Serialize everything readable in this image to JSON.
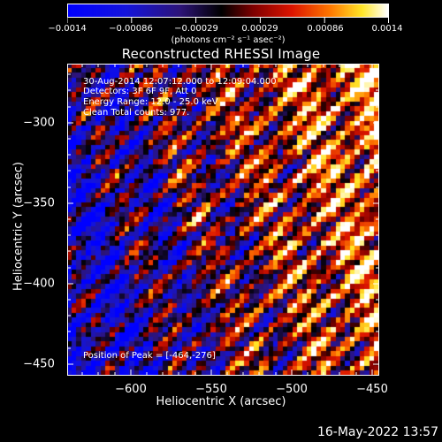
{
  "plot": {
    "title": "Reconstructed RHESSI Image",
    "x_label": "Heliocentric X (arcsec)",
    "y_label": "Heliocentric Y (arcsec)",
    "x_ticks": [
      "−600",
      "−550",
      "−500",
      "−450"
    ],
    "y_ticks": [
      "−300",
      "−350",
      "−400",
      "−450"
    ]
  },
  "colorbar": {
    "tick_labels": [
      "−0.0014",
      "−0.00086",
      "−0.00029",
      "0.00029",
      "0.00086",
      "0.0014"
    ],
    "units": "(photons cm⁻² s⁻¹ asec⁻²)",
    "min": -0.0014,
    "max": 0.0014
  },
  "annotations": {
    "time_range": "30-Aug-2014 12:07:12.000 to 12:09:04.000",
    "detectors": "Detectors: 3F 6F 9F, Att 0",
    "energy_range": "Energy Range: 12.0 - 25.0 keV",
    "clean_counts": "Clean    Total counts: 977.",
    "peak_position": "Position of Peak = [-464,-276]"
  },
  "footer": {
    "timestamp": "16-May-2022 13:57"
  },
  "chart_data": {
    "type": "heatmap",
    "title": "Reconstructed RHESSI Image",
    "xlabel": "Heliocentric X (arcsec)",
    "ylabel": "Heliocentric Y (arcsec)",
    "xlim": [
      -640,
      -445
    ],
    "ylim": [
      -458,
      -263
    ],
    "colorbar_range": [
      -0.0014,
      0.0014
    ],
    "colormap": "blue-black-red-yellow-white",
    "grid": false,
    "peak_position": [
      -464,
      -276
    ],
    "x_ticks": [
      -600,
      -550,
      -500,
      -450
    ],
    "y_ticks": [
      -300,
      -350,
      -400,
      -450
    ]
  }
}
